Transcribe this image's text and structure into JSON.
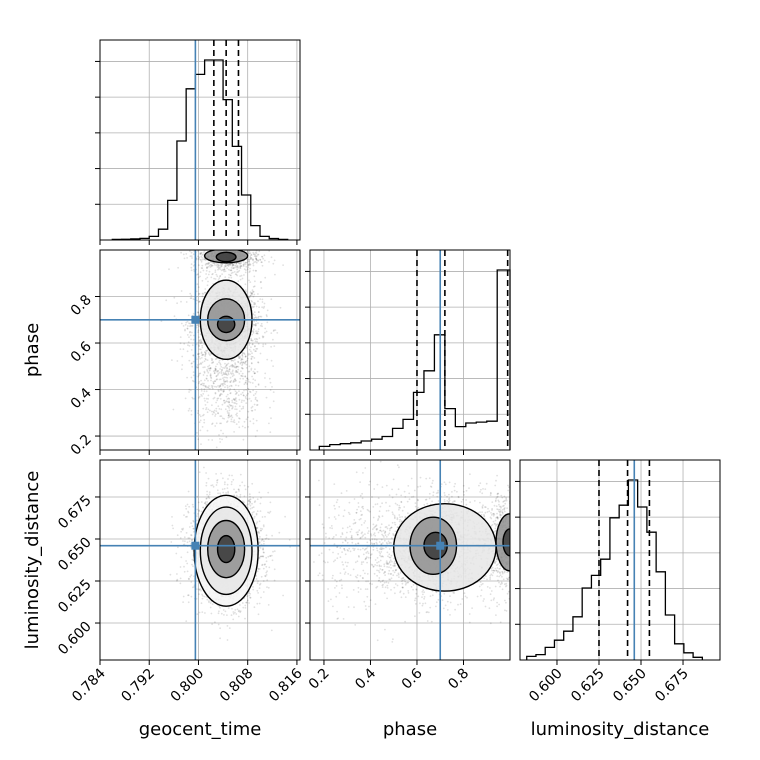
{
  "chart_data": {
    "type": "corner",
    "parameters": [
      "geocent_time",
      "phase",
      "luminosity_distance"
    ],
    "axis_labels": {
      "geocent_time": "geocent_time",
      "phase": "phase",
      "luminosity_distance": "luminosity_distance"
    },
    "ranges": {
      "geocent_time": [
        0.784,
        0.8165
      ],
      "phase": [
        0.14,
        1.0
      ],
      "luminosity_distance": [
        0.578,
        0.697
      ]
    },
    "ticks": {
      "geocent_time": {
        "values": [
          0.784,
          0.792,
          0.8,
          0.808,
          0.816
        ],
        "labels": [
          "0.784",
          "0.792",
          "0.800",
          "0.808",
          "0.816"
        ]
      },
      "phase": {
        "values": [
          0.2,
          0.4,
          0.6,
          0.8
        ],
        "labels": [
          "0.2",
          "0.4",
          "0.6",
          "0.8"
        ]
      },
      "luminosity_distance": {
        "values": [
          0.6,
          0.625,
          0.65,
          0.675
        ],
        "labels": [
          "0.600",
          "0.625",
          "0.650",
          "0.675"
        ]
      }
    },
    "truths": {
      "geocent_time": 0.7995,
      "phase": 0.7,
      "luminosity_distance": 0.646,
      "color": "#4682b4"
    },
    "quantiles": {
      "geocent_time": [
        0.8025,
        0.8045,
        0.8065
      ],
      "phase": [
        0.6,
        0.72,
        0.99
      ],
      "luminosity_distance": [
        0.625,
        0.642,
        0.655
      ]
    },
    "histograms": {
      "geocent_time": {
        "edges": [
          0.786,
          0.7875,
          0.789,
          0.7905,
          0.792,
          0.7935,
          0.795,
          0.7965,
          0.798,
          0.7995,
          0.801,
          0.8025,
          0.804,
          0.8055,
          0.807,
          0.8085,
          0.81,
          0.8115,
          0.813,
          0.8145
        ],
        "counts": [
          0.003,
          0.004,
          0.006,
          0.009,
          0.02,
          0.06,
          0.22,
          0.55,
          0.84,
          0.92,
          1.0,
          1.0,
          0.78,
          0.52,
          0.25,
          0.08,
          0.02,
          0.008,
          0.003
        ]
      },
      "phase": {
        "edges": [
          0.18,
          0.225,
          0.27,
          0.315,
          0.36,
          0.405,
          0.45,
          0.495,
          0.54,
          0.585,
          0.63,
          0.675,
          0.72,
          0.765,
          0.81,
          0.855,
          0.9,
          0.945,
          1.0
        ],
        "counts": [
          0.02,
          0.03,
          0.035,
          0.04,
          0.05,
          0.06,
          0.075,
          0.12,
          0.17,
          0.32,
          0.44,
          0.64,
          0.23,
          0.13,
          0.15,
          0.155,
          0.16,
          1.0
        ]
      },
      "luminosity_distance": {
        "edges": [
          0.582,
          0.5875,
          0.593,
          0.5985,
          0.604,
          0.6095,
          0.615,
          0.6205,
          0.626,
          0.6315,
          0.637,
          0.6425,
          0.648,
          0.6535,
          0.659,
          0.6645,
          0.67,
          0.6755,
          0.681,
          0.6865
        ],
        "counts": [
          0.02,
          0.03,
          0.07,
          0.11,
          0.16,
          0.24,
          0.4,
          0.47,
          0.56,
          0.79,
          0.86,
          1.0,
          0.85,
          0.71,
          0.49,
          0.25,
          0.09,
          0.04,
          0.015
        ]
      }
    },
    "samples_2d": [
      {
        "x": "geocent_time",
        "y": "phase",
        "clusters": [
          {
            "cx": 0.8045,
            "cy": 0.68,
            "sx": 0.0028,
            "sy": 0.09,
            "n": 1600
          },
          {
            "cx": 0.8045,
            "cy": 0.97,
            "sx": 0.0028,
            "sy": 0.035,
            "n": 700
          },
          {
            "cx": 0.8045,
            "cy": 0.42,
            "sx": 0.003,
            "sy": 0.12,
            "n": 600
          }
        ]
      },
      {
        "x": "geocent_time",
        "y": "luminosity_distance",
        "clusters": [
          {
            "cx": 0.8045,
            "cy": 0.644,
            "sx": 0.0029,
            "sy": 0.016,
            "n": 2600
          }
        ]
      },
      {
        "x": "phase",
        "y": "luminosity_distance",
        "clusters": [
          {
            "cx": 0.68,
            "cy": 0.645,
            "sx": 0.1,
            "sy": 0.016,
            "n": 1400
          },
          {
            "cx": 0.97,
            "cy": 0.648,
            "sx": 0.05,
            "sy": 0.016,
            "n": 700
          },
          {
            "cx": 0.42,
            "cy": 0.645,
            "sx": 0.12,
            "sy": 0.018,
            "n": 500
          }
        ]
      }
    ],
    "contours_2d": [
      {
        "x": "geocent_time",
        "y": "phase",
        "shapes": [
          {
            "cx": 0.8045,
            "cy": 0.68,
            "rx": 0.0014,
            "ry": 0.035,
            "level": 1
          },
          {
            "cx": 0.8045,
            "cy": 0.97,
            "rx": 0.0016,
            "ry": 0.02,
            "level": 1
          },
          {
            "cx": 0.8045,
            "cy": 0.7,
            "rx": 0.003,
            "ry": 0.09,
            "level": 2
          },
          {
            "cx": 0.8045,
            "cy": 0.975,
            "rx": 0.0035,
            "ry": 0.03,
            "level": 2
          },
          {
            "cx": 0.8045,
            "cy": 0.7,
            "rx": 0.0042,
            "ry": 0.17,
            "level": 3
          }
        ]
      },
      {
        "x": "geocent_time",
        "y": "luminosity_distance",
        "shapes": [
          {
            "cx": 0.8045,
            "cy": 0.644,
            "rx": 0.0014,
            "ry": 0.008,
            "level": 1
          },
          {
            "cx": 0.8045,
            "cy": 0.644,
            "rx": 0.003,
            "ry": 0.017,
            "level": 2
          },
          {
            "cx": 0.8045,
            "cy": 0.643,
            "rx": 0.0042,
            "ry": 0.026,
            "level": 3
          },
          {
            "cx": 0.8045,
            "cy": 0.643,
            "rx": 0.0052,
            "ry": 0.033,
            "level": 4
          }
        ]
      },
      {
        "x": "phase",
        "y": "luminosity_distance",
        "shapes": [
          {
            "cx": 0.68,
            "cy": 0.646,
            "rx": 0.05,
            "ry": 0.008,
            "level": 1
          },
          {
            "cx": 0.67,
            "cy": 0.646,
            "rx": 0.1,
            "ry": 0.017,
            "level": 2
          },
          {
            "cx": 0.72,
            "cy": 0.645,
            "rx": 0.22,
            "ry": 0.026,
            "level": 3
          },
          {
            "cx": 1.0,
            "cy": 0.648,
            "rx": 0.03,
            "ry": 0.008,
            "level": 1
          },
          {
            "cx": 1.0,
            "cy": 0.648,
            "rx": 0.06,
            "ry": 0.017,
            "level": 2
          }
        ]
      }
    ],
    "grid": true,
    "colors": {
      "truth": "#4682b4",
      "hist": "#000000",
      "quantile": "#000000",
      "points": "#555555"
    }
  }
}
